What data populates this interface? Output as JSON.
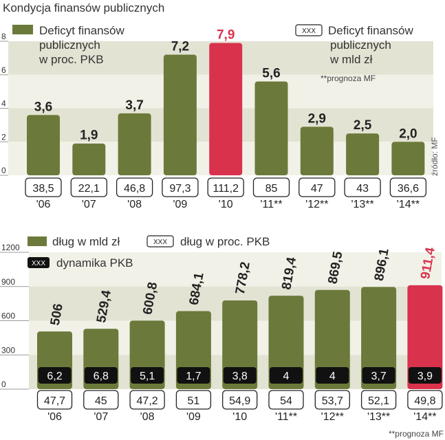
{
  "title": "Kondycja finansów publicznych",
  "source": "źródło: MF",
  "colors": {
    "bar": "#6b7a3a",
    "bar_highlight": "#d9324d",
    "highlight_text": "#d9324d",
    "band_dark": "#e3e3d4",
    "band_light": "#f1f1e8",
    "box_dark": "#111111"
  },
  "legend_top": {
    "series_label": "Deficyt finansów publicznych w proc. PKB",
    "boxed_symbol": "XXX",
    "boxed_label": "Deficyt finansów publicznych w mld zł",
    "note": "**prognoza MF"
  },
  "legend_bottom": {
    "series_label": "dług w mld zł",
    "boxed_symbol": "XXX",
    "boxed_label": "dług w proc. PKB",
    "dark_symbol": "XXX",
    "dark_label": "dynamika PKB",
    "note": "**prognoza MF"
  },
  "chart_data": [
    {
      "type": "bar",
      "title": "Deficyt finansów publicznych w proc. PKB",
      "categories": [
        "'06",
        "'07",
        "'08",
        "'09",
        "'10",
        "'11**",
        "'12**",
        "'13**",
        "'14**"
      ],
      "values": [
        3.6,
        1.9,
        3.7,
        7.2,
        7.9,
        5.6,
        2.9,
        2.5,
        2.0
      ],
      "value_labels": [
        "3,6",
        "1,9",
        "3,7",
        "7,2",
        "7,9",
        "5,6",
        "2,9",
        "2,5",
        "2,0"
      ],
      "highlight_index": 4,
      "ylim": [
        0,
        8
      ],
      "yticks": [
        "0",
        "2",
        "4",
        "6",
        "8"
      ],
      "secondary_label": "Deficyt finansów publicznych w mld zł",
      "secondary_values": [
        "38,5",
        "22,1",
        "46,8",
        "97,3",
        "111,2",
        "85",
        "47",
        "43",
        "36,6"
      ]
    },
    {
      "type": "bar",
      "title": "dług w mld zł",
      "categories": [
        "'06",
        "'07",
        "'08",
        "'09",
        "'10",
        "'11**",
        "'12**",
        "'13**",
        "'14**"
      ],
      "values": [
        506,
        529.4,
        600.8,
        684.1,
        778.2,
        819.4,
        869.5,
        896.1,
        911.4
      ],
      "value_labels": [
        "506",
        "529,4",
        "600,8",
        "684,1",
        "778,2",
        "819,4",
        "869,5",
        "896,1",
        "911,4"
      ],
      "highlight_index": 8,
      "ylim": [
        0,
        1200
      ],
      "yticks": [
        "0",
        "300",
        "600",
        "900",
        "1200"
      ],
      "secondary_label": "dług w proc. PKB",
      "secondary_values": [
        "47,7",
        "45",
        "47,2",
        "51",
        "54,9",
        "54",
        "53,7",
        "52,1",
        "49,8"
      ],
      "tertiary_label": "dynamika PKB",
      "tertiary_values": [
        "6,2",
        "6,8",
        "5,1",
        "1,7",
        "3,8",
        "4",
        "4",
        "3,7",
        "3,9"
      ]
    }
  ]
}
